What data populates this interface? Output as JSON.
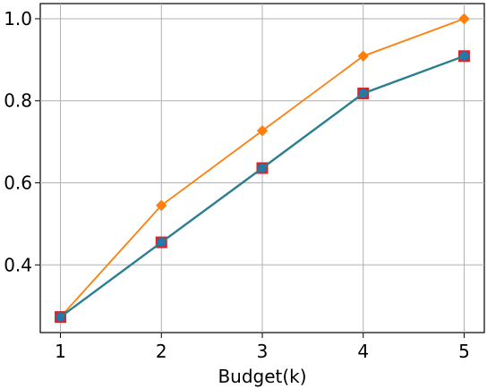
{
  "chart_data": {
    "type": "line",
    "title": "",
    "xlabel": "Budget(k)",
    "ylabel": "",
    "x": [
      1,
      2,
      3,
      4,
      5
    ],
    "xlim": [
      0.8,
      5.2
    ],
    "ylim": [
      0.235,
      1.037
    ],
    "xticks": [
      1,
      2,
      3,
      4,
      5
    ],
    "yticks": [
      0.4,
      0.6,
      0.8,
      1.0
    ],
    "xtick_labels": [
      "1",
      "2",
      "3",
      "4",
      "5"
    ],
    "ytick_labels": [
      "0.4",
      "0.6",
      "0.8",
      "1.0"
    ],
    "grid": true,
    "legend": "none",
    "series": [
      {
        "values": [
          0.273,
          0.545,
          0.727,
          0.909,
          1.0
        ],
        "color": "#ff7f0e",
        "marker": "diamond"
      },
      {
        "values": [
          0.273,
          0.455,
          0.636,
          0.818,
          0.909
        ],
        "color": "#d62728",
        "marker": "square"
      },
      {
        "values": [
          0.273,
          0.455,
          0.636,
          0.818,
          0.909
        ],
        "color": "#1f77b4",
        "marker": "circle"
      },
      {
        "values": [
          0.273,
          0.455,
          0.636,
          0.818,
          0.909
        ],
        "color": "#2a7f8f",
        "marker": "none"
      }
    ]
  }
}
